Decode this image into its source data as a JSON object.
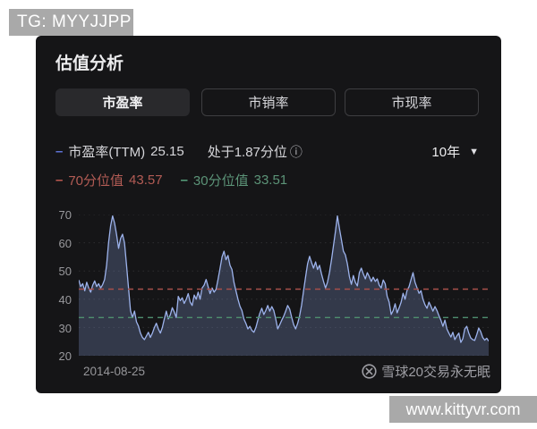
{
  "overlays": {
    "tg_badge": "TG: MYYJJPP",
    "site_badge": "www.kittyvr.com"
  },
  "panel": {
    "title": "估值分析",
    "tabs": [
      {
        "label": "市盈率",
        "selected": true
      },
      {
        "label": "市销率",
        "selected": false
      },
      {
        "label": "市现率",
        "selected": false
      }
    ],
    "legend": {
      "pe_marker": "–",
      "pe_label": "市盈率(TTM)",
      "pe_value": "25.15",
      "percentile_text": "处于1.87分位",
      "info_icon": "ⓘ",
      "p70_marker": "–",
      "p70_label": "70分位值",
      "p70_value": "43.57",
      "p30_marker": "–",
      "p30_label": "30分位值",
      "p30_value": "33.51"
    },
    "range_selector": {
      "value": "10年",
      "caret": "▼"
    },
    "footer": {
      "date_label": "2014-08-25",
      "watermark_text": "雪球20交易永无眠"
    }
  },
  "colors": {
    "panel_bg": "#151517",
    "line": "#9db3ec",
    "area_fill": "rgba(130,150,210,0.28)",
    "grid": "#2e2e31",
    "guide_70": "#a8504a",
    "guide_30": "#4f8f6f",
    "badge_bg": "#a9a9a9"
  },
  "chart_data": {
    "type": "area",
    "title": "市盈率(TTM) 10年走势",
    "xlabel": "",
    "ylabel": "市盈率",
    "x_start_label": "2014-08-25",
    "ylim": [
      20,
      70
    ],
    "yticks": [
      70,
      60,
      50,
      40,
      30,
      20
    ],
    "grid": "horizontal-dotted",
    "legend_position": "top-left",
    "guides": [
      {
        "label": "70分位值",
        "value": 43.57,
        "style": "dashed",
        "color": "#a8504a"
      },
      {
        "label": "30分位值",
        "value": 33.51,
        "style": "dashed",
        "color": "#4f8f6f"
      }
    ],
    "series": [
      {
        "name": "市盈率(TTM)",
        "current": 25.15,
        "percentile": 1.87,
        "values": [
          46.8,
          44.5,
          45.5,
          43.0,
          46.0,
          44.0,
          42.5,
          45.0,
          46.5,
          44.5,
          45.5,
          44.0,
          45.2,
          47.0,
          52.0,
          60.0,
          66.0,
          69.5,
          67.0,
          63.0,
          58.0,
          61.5,
          63.0,
          60.0,
          52.0,
          44.0,
          36.0,
          33.5,
          35.8,
          32.0,
          30.5,
          28.0,
          26.5,
          25.7,
          27.0,
          28.3,
          26.5,
          28.0,
          30.0,
          31.5,
          29.5,
          28.0,
          30.0,
          33.0,
          35.8,
          33.0,
          34.5,
          37.0,
          35.5,
          33.5,
          41.0,
          39.5,
          40.5,
          38.5,
          40.0,
          42.0,
          39.0,
          37.8,
          41.5,
          40.0,
          42.5,
          40.0,
          44.0,
          45.0,
          47.0,
          44.5,
          42.0,
          44.0,
          42.5,
          43.5,
          47.0,
          51.0,
          55.0,
          57.0,
          54.0,
          55.5,
          52.0,
          50.5,
          46.0,
          43.0,
          40.0,
          37.5,
          36.0,
          33.0,
          31.4,
          29.5,
          30.4,
          29.0,
          28.3,
          30.0,
          32.6,
          35.0,
          36.8,
          34.6,
          36.0,
          37.8,
          35.8,
          37.4,
          36.0,
          33.0,
          29.5,
          31.0,
          32.6,
          34.0,
          35.8,
          37.8,
          36.5,
          33.6,
          31.0,
          29.5,
          31.5,
          34.2,
          38.0,
          43.0,
          48.0,
          52.6,
          55.2,
          53.0,
          51.0,
          53.2,
          50.5,
          52.0,
          49.0,
          46.3,
          44.0,
          46.0,
          49.4,
          54.0,
          59.0,
          64.0,
          69.5,
          65.0,
          61.0,
          57.0,
          55.7,
          52.6,
          48.0,
          45.3,
          48.4,
          46.0,
          44.7,
          49.4,
          51.0,
          49.0,
          47.2,
          49.4,
          48.0,
          46.3,
          47.8,
          46.3,
          47.2,
          45.0,
          44.0,
          46.8,
          45.5,
          41.0,
          39.0,
          34.6,
          36.0,
          38.4,
          35.2,
          37.0,
          39.0,
          42.1,
          40.0,
          43.1,
          44.5,
          47.0,
          49.4,
          46.0,
          44.0,
          42.1,
          43.0,
          40.0,
          38.0,
          36.8,
          39.0,
          37.5,
          35.8,
          37.4,
          36.0,
          34.2,
          32.6,
          30.4,
          32.6,
          29.5,
          28.0,
          26.6,
          28.3,
          25.7,
          27.0,
          28.0,
          24.7,
          26.0,
          29.5,
          30.4,
          28.0,
          26.3,
          25.7,
          25.4,
          27.5,
          29.8,
          28.5,
          26.5,
          25.5,
          26.2,
          25.15
        ]
      }
    ]
  }
}
